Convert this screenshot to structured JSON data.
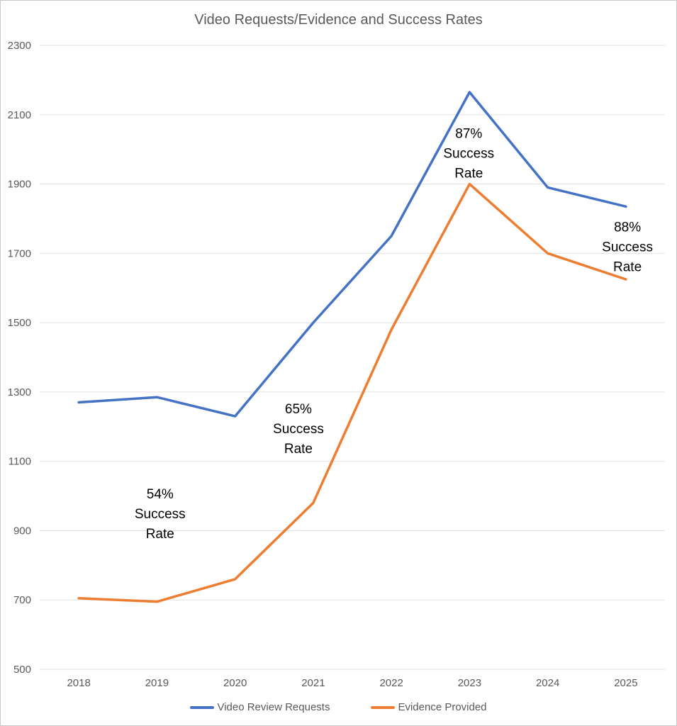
{
  "title": "Video Requests/Evidence and Success Rates",
  "chart_data": {
    "type": "line",
    "title": "Video Requests/Evidence and Success Rates",
    "categories": [
      "2018",
      "2019",
      "2020",
      "2021",
      "2022",
      "2023",
      "2024",
      "2025"
    ],
    "series": [
      {
        "name": "Video Review Requests",
        "color": "#4472C4",
        "values": [
          1270,
          1285,
          1230,
          1500,
          1750,
          2165,
          1890,
          1835
        ]
      },
      {
        "name": "Evidence Provided",
        "color": "#ED7D31",
        "values": [
          705,
          695,
          760,
          980,
          1480,
          1900,
          1700,
          1625
        ]
      }
    ],
    "xlabel": "",
    "ylabel": "",
    "ylim": [
      500,
      2300
    ],
    "y_ticks": [
      500,
      700,
      900,
      1100,
      1300,
      1500,
      1700,
      1900,
      2100,
      2300
    ],
    "grid": true,
    "legend_position": "bottom",
    "annotations": [
      {
        "lines": [
          "54%",
          "Success",
          "Rate"
        ],
        "x_index": 1.04,
        "y_value": 950
      },
      {
        "lines": [
          "65%",
          "Success",
          "Rate"
        ],
        "x_index": 2.81,
        "y_value": 1195
      },
      {
        "lines": [
          "87%",
          "Success",
          "Rate"
        ],
        "x_index": 4.99,
        "y_value": 1990
      },
      {
        "lines": [
          "88%",
          "Success",
          "Rate"
        ],
        "x_index": 7.02,
        "y_value": 1720
      }
    ]
  },
  "colors": {
    "grid": "#E2E2E2",
    "axis_text": "#595959",
    "title_text": "#595959",
    "annotation_text": "#000000",
    "background": "#FFFFFF",
    "border": "#C9C9C9"
  }
}
